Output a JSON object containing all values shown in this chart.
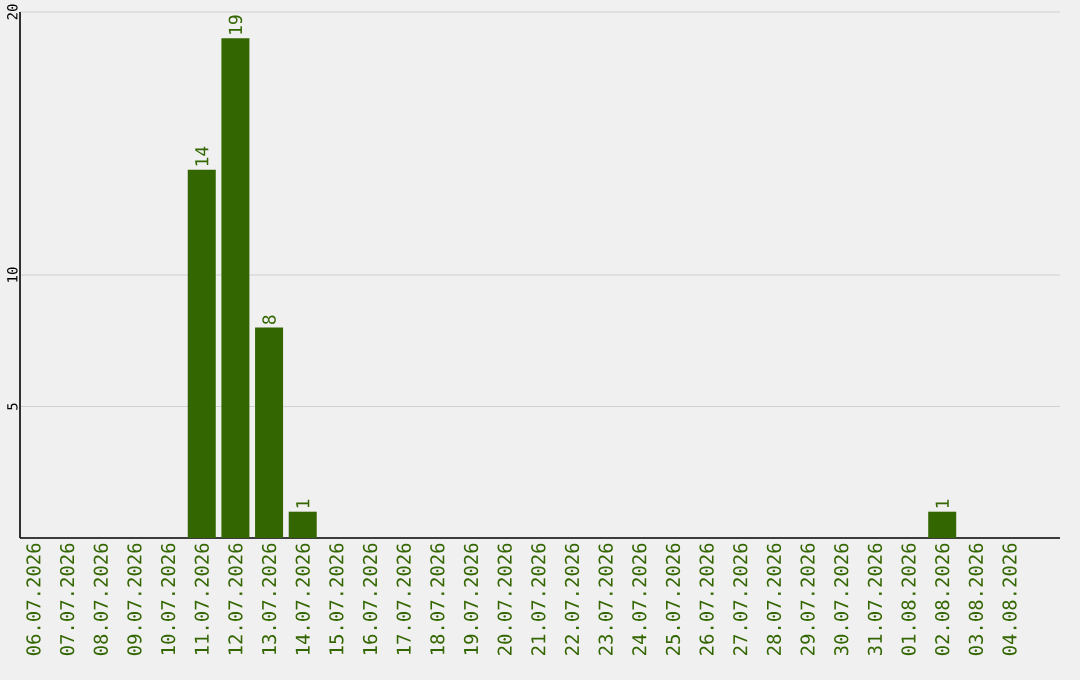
{
  "chart_data": {
    "type": "bar",
    "categories": [
      "06.07.2026",
      "07.07.2026",
      "08.07.2026",
      "09.07.2026",
      "10.07.2026",
      "11.07.2026",
      "12.07.2026",
      "13.07.2026",
      "14.07.2026",
      "15.07.2026",
      "16.07.2026",
      "17.07.2026",
      "18.07.2026",
      "19.07.2026",
      "20.07.2026",
      "21.07.2026",
      "22.07.2026",
      "23.07.2026",
      "24.07.2026",
      "25.07.2026",
      "26.07.2026",
      "27.07.2026",
      "28.07.2026",
      "29.07.2026",
      "30.07.2026",
      "31.07.2026",
      "01.08.2026",
      "02.08.2026",
      "03.08.2026",
      "04.08.2026"
    ],
    "values": [
      0,
      0,
      0,
      0,
      0,
      14,
      19,
      8,
      1,
      0,
      0,
      0,
      0,
      0,
      0,
      0,
      0,
      0,
      0,
      0,
      0,
      0,
      0,
      0,
      0,
      0,
      0,
      1,
      0,
      0
    ],
    "value_labels": [
      null,
      null,
      null,
      null,
      null,
      "14",
      "19",
      "8",
      "1",
      null,
      null,
      null,
      null,
      null,
      null,
      null,
      null,
      null,
      null,
      null,
      null,
      null,
      null,
      null,
      null,
      null,
      null,
      "1",
      null,
      null
    ],
    "color": "#336600",
    "ylim": [
      0,
      20
    ],
    "yticks": [
      5,
      10,
      20
    ],
    "grid": "y"
  }
}
